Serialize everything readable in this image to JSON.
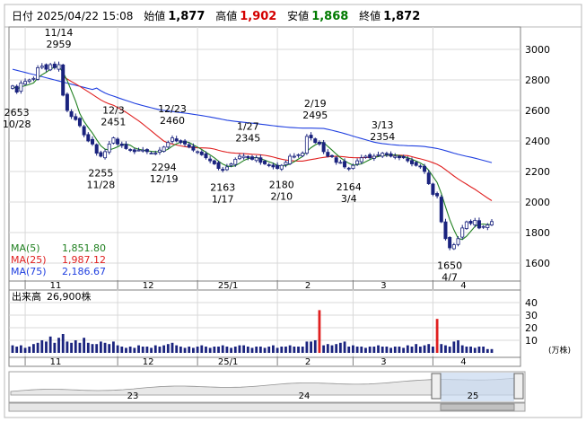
{
  "header": {
    "date_label": "日付",
    "datetime": "2025/04/22 15:08",
    "open_label": "始値",
    "open": "1,877",
    "high_label": "高値",
    "high": "1,902",
    "low_label": "安値",
    "low": "1,868",
    "close_label": "終値",
    "close": "1,872"
  },
  "colors": {
    "ma5": "#208020",
    "ma25": "#e02020",
    "ma75": "#2040e0",
    "candle_down": "#1a237e",
    "candle_up": "#1a237e",
    "volume_high": "#e02020",
    "volume_normal": "#1a237e",
    "navigator_fill": "#c8d8f0"
  },
  "legend": [
    {
      "label": "MA(5)",
      "value": "1,851.80",
      "color": "#208020"
    },
    {
      "label": "MA(25)",
      "value": "1,987.12",
      "color": "#e02020"
    },
    {
      "label": "MA(75)",
      "value": "2,186.67",
      "color": "#2040e0"
    }
  ],
  "volume": {
    "label": "出来高",
    "value": "26,900株",
    "unit": "(万株)"
  },
  "navigator": {
    "year_labels": [
      "23",
      "24",
      "25"
    ]
  },
  "chart_data": {
    "type": "candlestick",
    "price_axis": {
      "ticks": [
        "3000",
        "2800",
        "2600",
        "2400",
        "2200",
        "2000",
        "1800",
        "1600"
      ],
      "ylim": [
        1500,
        3100
      ]
    },
    "volume_axis": {
      "ticks": [
        "40",
        "30",
        "20",
        "10"
      ],
      "ylim": [
        0,
        45
      ]
    },
    "month_labels": [
      "11",
      "12",
      "25/1",
      "2",
      "3",
      "4"
    ],
    "annotations": [
      {
        "text": [
          "11/14",
          "2959"
        ],
        "idx": 11,
        "value": 2959,
        "kind": "high"
      },
      {
        "text": [
          "2653",
          "10/28"
        ],
        "idx": 1,
        "value": 2653,
        "kind": "low"
      },
      {
        "text": [
          "12/3",
          "2451"
        ],
        "idx": 24,
        "value": 2451,
        "kind": "high"
      },
      {
        "text": [
          "2255",
          "11/28"
        ],
        "idx": 21,
        "value": 2255,
        "kind": "low"
      },
      {
        "text": [
          "12/23",
          "2460"
        ],
        "idx": 38,
        "value": 2460,
        "kind": "high"
      },
      {
        "text": [
          "2294",
          "12/19"
        ],
        "idx": 36,
        "value": 2294,
        "kind": "low"
      },
      {
        "text": [
          "1/27",
          "2345"
        ],
        "idx": 56,
        "value": 2345,
        "kind": "high"
      },
      {
        "text": [
          "2163",
          "1/17"
        ],
        "idx": 50,
        "value": 2163,
        "kind": "low"
      },
      {
        "text": [
          "2/19",
          "2495"
        ],
        "idx": 72,
        "value": 2495,
        "kind": "high"
      },
      {
        "text": [
          "2180",
          "2/10"
        ],
        "idx": 64,
        "value": 2180,
        "kind": "low"
      },
      {
        "text": [
          "3/13",
          "2354"
        ],
        "idx": 88,
        "value": 2354,
        "kind": "high"
      },
      {
        "text": [
          "2164",
          "3/4"
        ],
        "idx": 80,
        "value": 2164,
        "kind": "low"
      },
      {
        "text": [
          "1650",
          "4/7"
        ],
        "idx": 104,
        "value": 1650,
        "kind": "low"
      }
    ],
    "month_start_idx": [
      3,
      25,
      44,
      63,
      81,
      100
    ],
    "close": [
      2760,
      2720,
      2780,
      2790,
      2800,
      2810,
      2880,
      2890,
      2870,
      2900,
      2880,
      2900,
      2700,
      2600,
      2560,
      2540,
      2500,
      2440,
      2400,
      2380,
      2320,
      2300,
      2330,
      2380,
      2420,
      2380,
      2370,
      2350,
      2340,
      2330,
      2340,
      2340,
      2330,
      2320,
      2320,
      2340,
      2360,
      2390,
      2420,
      2400,
      2390,
      2380,
      2360,
      2340,
      2330,
      2310,
      2290,
      2270,
      2250,
      2220,
      2210,
      2230,
      2250,
      2280,
      2300,
      2300,
      2290,
      2280,
      2290,
      2260,
      2250,
      2240,
      2230,
      2220,
      2240,
      2260,
      2300,
      2300,
      2310,
      2320,
      2430,
      2420,
      2390,
      2380,
      2330,
      2300,
      2300,
      2260,
      2260,
      2230,
      2220,
      2240,
      2270,
      2290,
      2300,
      2290,
      2300,
      2310,
      2320,
      2310,
      2300,
      2300,
      2290,
      2290,
      2270,
      2250,
      2240,
      2230,
      2200,
      2120,
      2050,
      2040,
      1870,
      1760,
      1700,
      1720,
      1760,
      1830,
      1870,
      1860,
      1880,
      1830,
      1840,
      1850,
      1872
    ],
    "volume": [
      6,
      5,
      6,
      4,
      5,
      7,
      8,
      10,
      9,
      13,
      8,
      12,
      15,
      9,
      8,
      10,
      8,
      12,
      8,
      7,
      7,
      9,
      8,
      7,
      9,
      6,
      5,
      4,
      5,
      4,
      6,
      5,
      5,
      4,
      6,
      5,
      6,
      7,
      8,
      6,
      5,
      4,
      5,
      4,
      5,
      6,
      5,
      4,
      5,
      5,
      6,
      5,
      4,
      5,
      6,
      6,
      5,
      4,
      5,
      5,
      4,
      5,
      6,
      4,
      5,
      5,
      6,
      5,
      5,
      5,
      9,
      9,
      10,
      34,
      6,
      7,
      6,
      7,
      8,
      9,
      5,
      6,
      5,
      5,
      4,
      5,
      5,
      6,
      5,
      5,
      4,
      5,
      5,
      4,
      6,
      5,
      7,
      5,
      6,
      7,
      5,
      27,
      7,
      6,
      5,
      9,
      10,
      6,
      5,
      5,
      4,
      5,
      5,
      3,
      3
    ]
  }
}
